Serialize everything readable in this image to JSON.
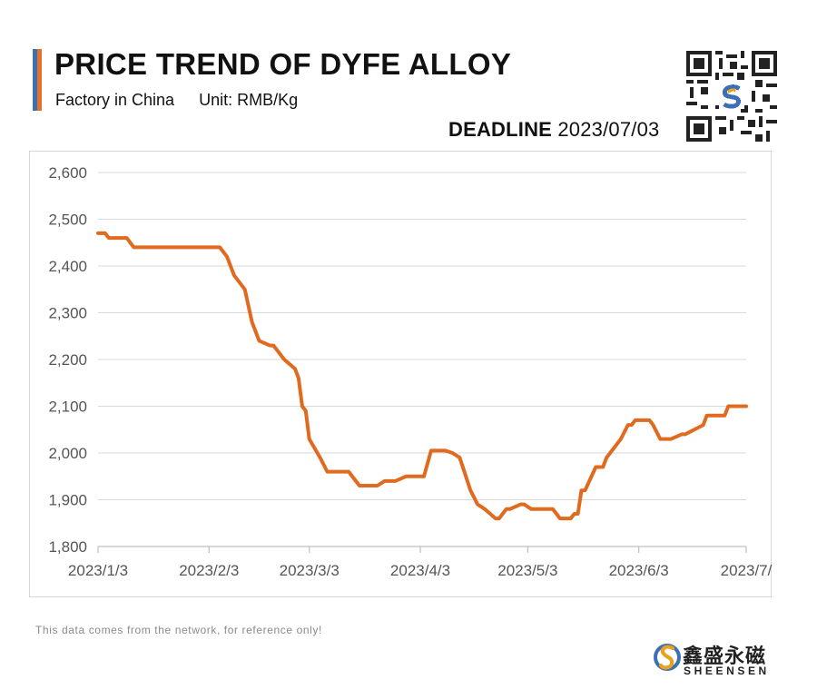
{
  "header": {
    "title": "PRICE TREND OF DYFE ALLOY",
    "factory": "Factory in China",
    "unit": "Unit: RMB/Kg",
    "deadline_label": "DEADLINE",
    "deadline_date": "2023/07/03"
  },
  "footer": {
    "note": "This data comes from the network, for reference only!",
    "brand_cn": "鑫盛永磁",
    "brand_en": "SHEENSEN"
  },
  "colors": {
    "line": "#e06a1f",
    "grid": "#d9d9d9",
    "accent_blue": "#3b6fb6",
    "accent_orange": "#e8702a"
  },
  "chart_data": {
    "type": "line",
    "title": "PRICE TREND OF DYFE ALLOY",
    "xlabel": "",
    "ylabel": "",
    "ylim": [
      1800,
      2600
    ],
    "yticks": [
      1800,
      1900,
      2000,
      2100,
      2200,
      2300,
      2400,
      2500,
      2600
    ],
    "ytick_labels": [
      "1,800",
      "1,900",
      "2,000",
      "2,100",
      "2,200",
      "2,300",
      "2,400",
      "2,500",
      "2,600"
    ],
    "xlim": [
      "2023-01-03",
      "2023-07-03"
    ],
    "xticks": [
      "2023-01-03",
      "2023-02-03",
      "2023-03-03",
      "2023-04-03",
      "2023-05-03",
      "2023-06-03",
      "2023-07-03"
    ],
    "xtick_labels": [
      "2023/1/3",
      "2023/2/3",
      "2023/3/3",
      "2023/4/3",
      "2023/5/3",
      "2023/6/3",
      "2023/7/"
    ],
    "grid": true,
    "series": [
      {
        "x": [
          "2023-01-03",
          "2023-01-05",
          "2023-01-06",
          "2023-01-11",
          "2023-01-12",
          "2023-01-13",
          "2023-02-06",
          "2023-02-08",
          "2023-02-10",
          "2023-02-13",
          "2023-02-15",
          "2023-02-17",
          "2023-02-20",
          "2023-02-21",
          "2023-02-22",
          "2023-02-24",
          "2023-02-27",
          "2023-02-28",
          "2023-03-01",
          "2023-03-02",
          "2023-03-03",
          "2023-03-06",
          "2023-03-08",
          "2023-03-10",
          "2023-03-14",
          "2023-03-16",
          "2023-03-17",
          "2023-03-22",
          "2023-03-24",
          "2023-03-27",
          "2023-03-30",
          "2023-03-31",
          "2023-04-04",
          "2023-04-06",
          "2023-04-07",
          "2023-04-10",
          "2023-04-12",
          "2023-04-14",
          "2023-04-17",
          "2023-04-19",
          "2023-04-20",
          "2023-04-21",
          "2023-04-24",
          "2023-04-25",
          "2023-04-27",
          "2023-04-28",
          "2023-05-01",
          "2023-05-02",
          "2023-05-04",
          "2023-05-09",
          "2023-05-10",
          "2023-05-12",
          "2023-05-15",
          "2023-05-16",
          "2023-05-17",
          "2023-05-18",
          "2023-05-19",
          "2023-05-22",
          "2023-05-24",
          "2023-05-25",
          "2023-05-29",
          "2023-05-31",
          "2023-06-01",
          "2023-06-02",
          "2023-06-06",
          "2023-06-07",
          "2023-06-09",
          "2023-06-12",
          "2023-06-15",
          "2023-06-16",
          "2023-06-21",
          "2023-06-22",
          "2023-06-23",
          "2023-06-27",
          "2023-06-28",
          "2023-07-03"
        ],
        "y": [
          2470,
          2470,
          2460,
          2460,
          2450,
          2440,
          2440,
          2420,
          2380,
          2350,
          2280,
          2240,
          2230,
          2230,
          2220,
          2200,
          2180,
          2160,
          2100,
          2090,
          2030,
          1990,
          1960,
          1960,
          1960,
          1940,
          1930,
          1930,
          1940,
          1940,
          1950,
          1950,
          1950,
          2005,
          2005,
          2005,
          2000,
          1990,
          1920,
          1890,
          1885,
          1880,
          1860,
          1860,
          1880,
          1880,
          1890,
          1890,
          1880,
          1880,
          1880,
          1860,
          1860,
          1870,
          1870,
          1920,
          1920,
          1970,
          1970,
          1990,
          2030,
          2060,
          2060,
          2070,
          2070,
          2060,
          2030,
          2030,
          2040,
          2040,
          2060,
          2080,
          2080,
          2080,
          2100,
          2100
        ]
      }
    ]
  }
}
